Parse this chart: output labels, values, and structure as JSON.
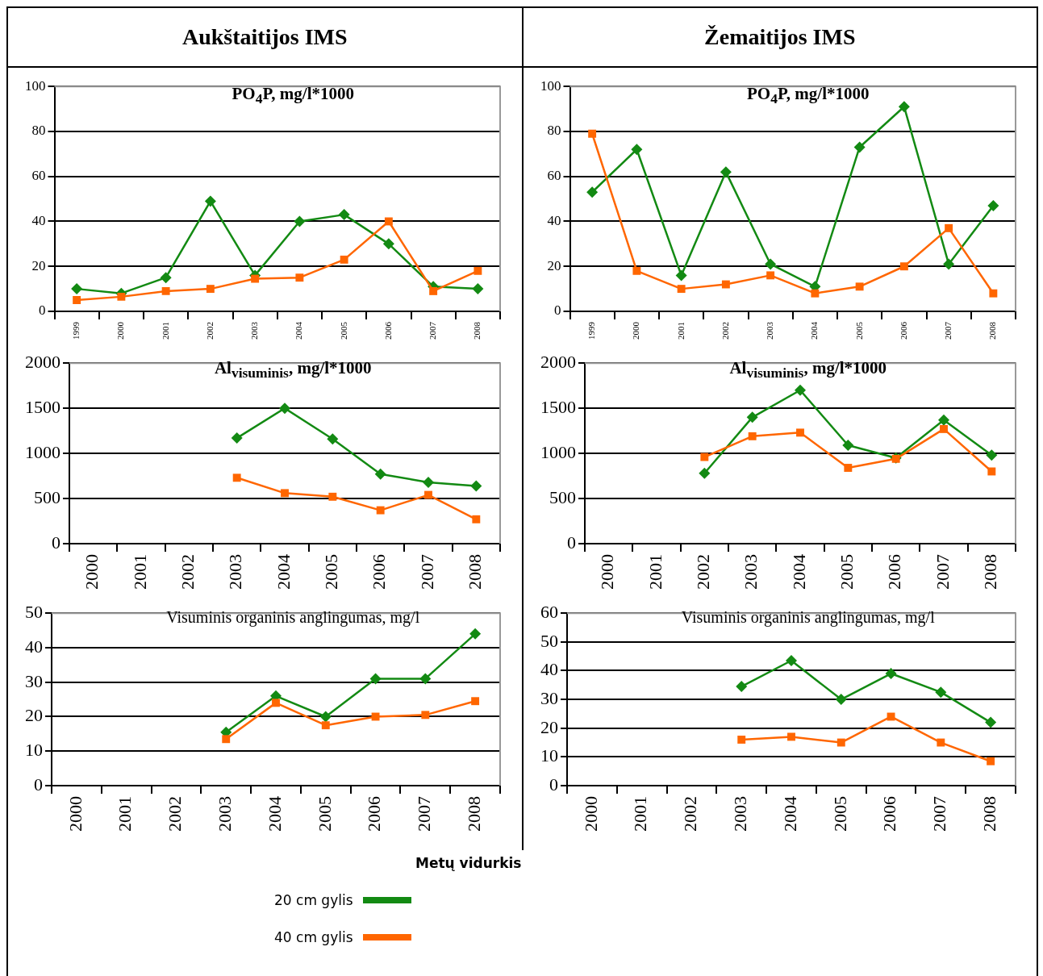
{
  "chart_data": [
    {
      "type": "line",
      "title": "PO$_{4}$P, mg/l*1000",
      "annotations": [
        "Aukštaitijos IMS"
      ],
      "categories": [
        "1999",
        "2000",
        "2001",
        "2002",
        "2003",
        "2004",
        "2005",
        "2006",
        "2007",
        "2008"
      ],
      "ylim": [
        0,
        100
      ],
      "yticks": [
        0,
        20,
        40,
        60,
        80,
        100
      ],
      "grid": "y",
      "legend": "bottom",
      "legend_title": "Metų vidurkis",
      "series": [
        {
          "name": "20 cm gylis",
          "color": "#138a13",
          "marker": "diamond",
          "values": [
            10,
            8,
            15,
            49,
            16,
            40,
            43,
            30,
            11,
            10
          ]
        },
        {
          "name": "40 cm gylis",
          "color": "#ff6600",
          "marker": "square",
          "values": [
            5,
            6.5,
            9,
            10,
            14.5,
            15,
            23,
            40,
            9,
            18
          ]
        }
      ]
    },
    {
      "type": "line",
      "title": "PO$_{4}$P, mg/l*1000",
      "annotations": [
        "Žemaitijos IMS"
      ],
      "categories": [
        "1999",
        "2000",
        "2001",
        "2002",
        "2003",
        "2004",
        "2005",
        "2006",
        "2007",
        "2008"
      ],
      "ylim": [
        0,
        100
      ],
      "yticks": [
        0,
        20,
        40,
        60,
        80,
        100
      ],
      "grid": "y",
      "series": [
        {
          "color": "#138a13",
          "marker": "diamond",
          "values": [
            53,
            72,
            16,
            62,
            21,
            11,
            73,
            91,
            21,
            47
          ]
        },
        {
          "color": "#ff6600",
          "marker": "square",
          "values": [
            79,
            18,
            10,
            12,
            16,
            8,
            11,
            20,
            37,
            8
          ]
        }
      ]
    },
    {
      "type": "line",
      "title": "Al$_{visuminis}$, mg/l*1000",
      "categories": [
        "2000",
        "2001",
        "2002",
        "2003",
        "2004",
        "2005",
        "2006",
        "2007",
        "2008"
      ],
      "ylim": [
        0,
        2000
      ],
      "yticks": [
        0,
        500,
        1000,
        1500,
        2000
      ],
      "grid": "y",
      "series": [
        {
          "color": "#138a13",
          "marker": "diamond",
          "values": [
            null,
            null,
            null,
            1170,
            1500,
            1160,
            770,
            680,
            640
          ]
        },
        {
          "color": "#ff6600",
          "marker": "square",
          "values": [
            null,
            null,
            null,
            730,
            560,
            520,
            370,
            540,
            270
          ]
        }
      ]
    },
    {
      "type": "line",
      "title": "Al$_{visuminis}$, mg/l*1000",
      "categories": [
        "2000",
        "2001",
        "2002",
        "2003",
        "2004",
        "2005",
        "2006",
        "2007",
        "2008"
      ],
      "ylim": [
        0,
        2000
      ],
      "yticks": [
        0,
        500,
        1000,
        1500,
        2000
      ],
      "grid": "y",
      "series": [
        {
          "color": "#138a13",
          "marker": "diamond",
          "values": [
            null,
            null,
            780,
            1400,
            1700,
            1090,
            950,
            1370,
            980
          ]
        },
        {
          "color": "#ff6600",
          "marker": "square",
          "values": [
            null,
            null,
            960,
            1190,
            1230,
            840,
            940,
            1270,
            800
          ]
        }
      ]
    },
    {
      "type": "line",
      "title": "Visuminis organinis anglingumas, mg/l",
      "categories": [
        "2000",
        "2001",
        "2002",
        "2003",
        "2004",
        "2005",
        "2006",
        "2007",
        "2008"
      ],
      "ylim": [
        0,
        50
      ],
      "yticks": [
        0,
        10,
        20,
        30,
        40,
        50
      ],
      "grid": "y",
      "series": [
        {
          "color": "#138a13",
          "marker": "diamond",
          "values": [
            null,
            null,
            null,
            15.5,
            26,
            20,
            31,
            31,
            44
          ]
        },
        {
          "color": "#ff6600",
          "marker": "square",
          "values": [
            null,
            null,
            null,
            13.5,
            24,
            17.5,
            20,
            20.5,
            24.5
          ]
        }
      ]
    },
    {
      "type": "line",
      "title": "Visuminis organinis anglingumas, mg/l",
      "categories": [
        "2000",
        "2001",
        "2002",
        "2003",
        "2004",
        "2005",
        "2006",
        "2007",
        "2008"
      ],
      "ylim": [
        0,
        60
      ],
      "yticks": [
        0,
        10,
        20,
        30,
        40,
        50,
        60
      ],
      "grid": "y",
      "series": [
        {
          "color": "#138a13",
          "marker": "diamond",
          "values": [
            null,
            null,
            null,
            34.5,
            43.5,
            30,
            39,
            32.5,
            22
          ]
        },
        {
          "color": "#ff6600",
          "marker": "square",
          "values": [
            null,
            null,
            null,
            16,
            17,
            15,
            24,
            15,
            8.5
          ]
        }
      ]
    }
  ]
}
